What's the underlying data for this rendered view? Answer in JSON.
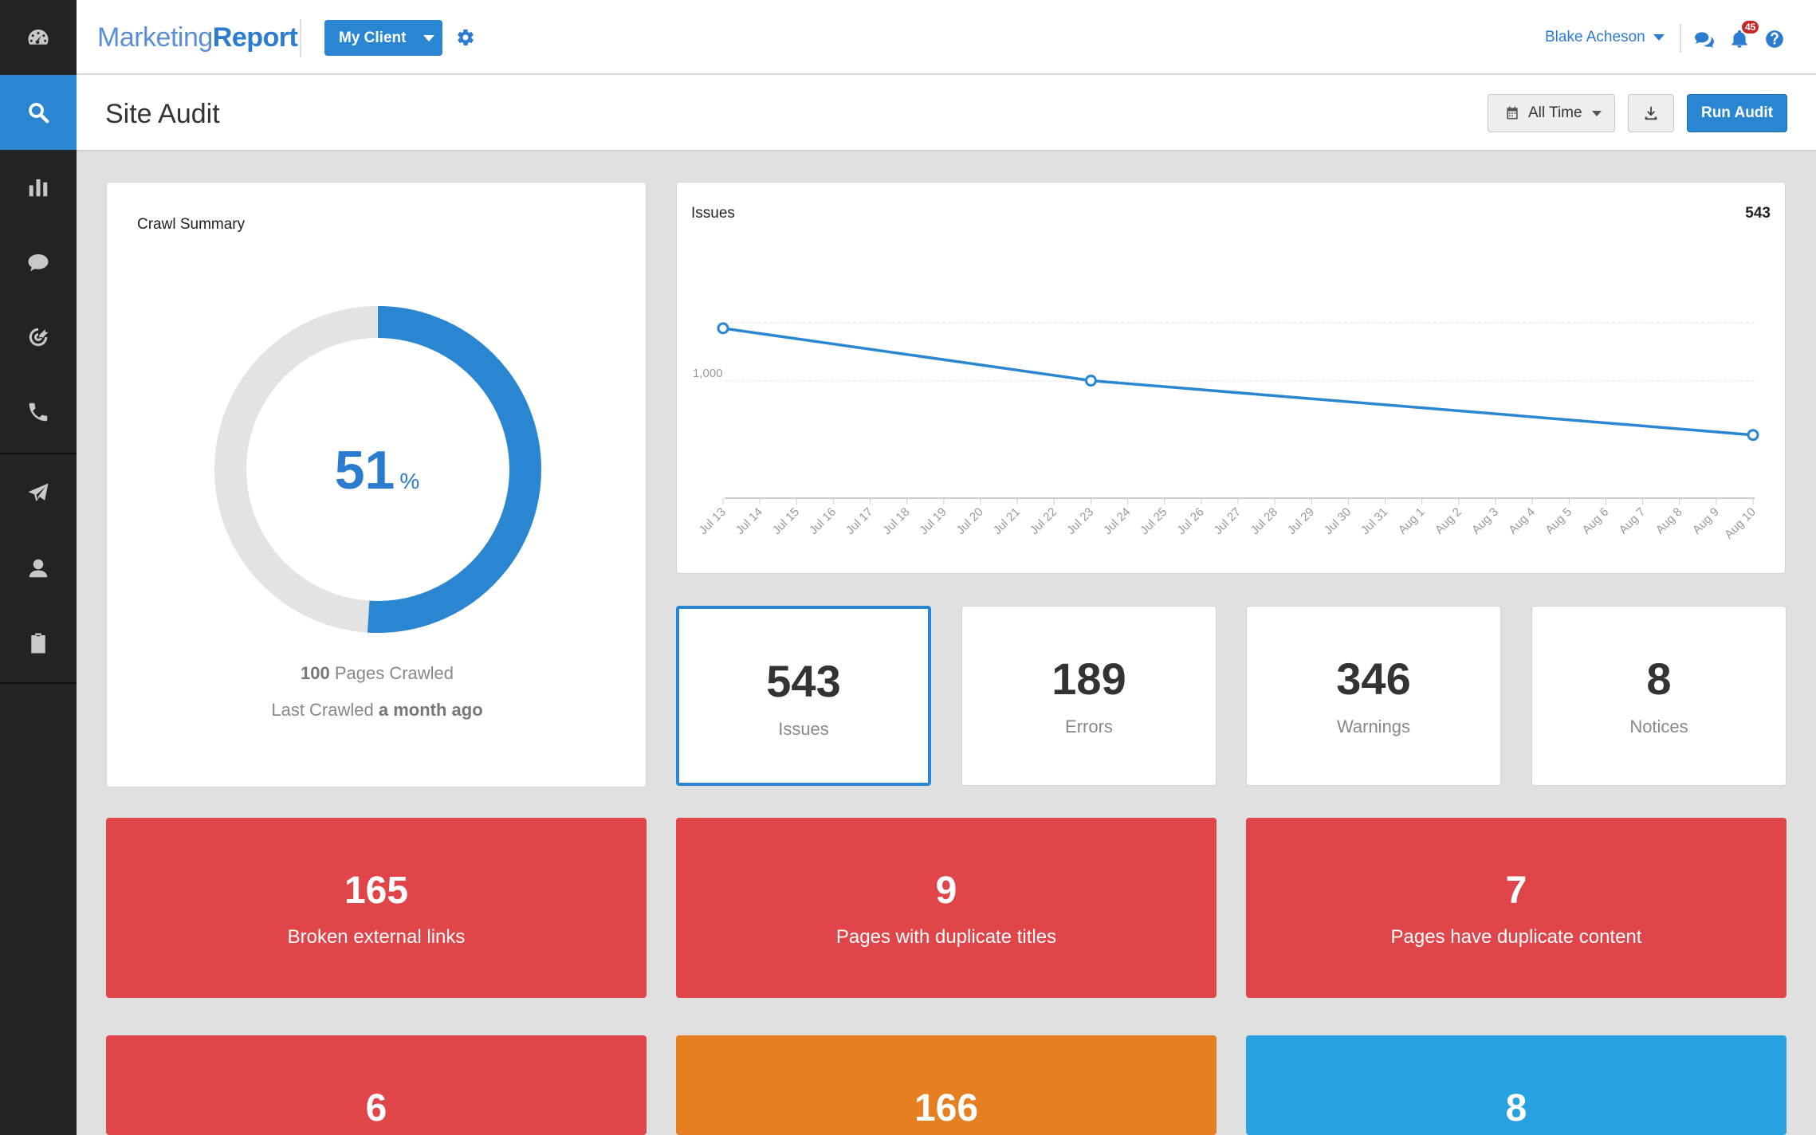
{
  "app": {
    "logo_part1": "Marketing",
    "logo_part2": "Report",
    "client_button": "My Client",
    "user_name": "Blake Acheson",
    "notification_count": "45"
  },
  "sidebar": {
    "items": [
      {
        "icon": "dashboard-icon"
      },
      {
        "icon": "search-icon",
        "active": true
      },
      {
        "icon": "bar-chart-icon"
      },
      {
        "icon": "chat-icon"
      },
      {
        "icon": "target-icon"
      },
      {
        "icon": "phone-icon"
      },
      {
        "icon": "paper-plane-icon"
      },
      {
        "icon": "user-icon"
      },
      {
        "icon": "clipboard-check-icon"
      }
    ]
  },
  "page": {
    "title": "Site Audit",
    "date_range": "All Time",
    "run_button": "Run Audit"
  },
  "crawl": {
    "title": "Crawl Summary",
    "percent": "51",
    "percent_symbol": "%",
    "percent_value": 51,
    "pages_count": "100",
    "pages_label": "Pages Crawled",
    "last_label": "Last Crawled",
    "last_value": "a month ago"
  },
  "issues_chart": {
    "title": "Issues",
    "total": "543"
  },
  "chart_data": {
    "type": "line",
    "title": "Issues",
    "x": [
      "Jul 13",
      "Jul 14",
      "Jul 15",
      "Jul 16",
      "Jul 17",
      "Jul 18",
      "Jul 19",
      "Jul 20",
      "Jul 21",
      "Jul 22",
      "Jul 23",
      "Jul 24",
      "Jul 25",
      "Jul 26",
      "Jul 27",
      "Jul 28",
      "Jul 29",
      "Jul 30",
      "Jul 31",
      "Aug 1",
      "Aug 2",
      "Aug 3",
      "Aug 4",
      "Aug 5",
      "Aug 6",
      "Aug 7",
      "Aug 8",
      "Aug 9",
      "Aug 10"
    ],
    "y_ticks": [
      "1,000"
    ],
    "series": [
      {
        "points": [
          {
            "x": "Jul 13",
            "y": 1460
          },
          {
            "x": "Jul 23",
            "y": 1010
          },
          {
            "x": "Aug 10",
            "y": 543
          }
        ]
      }
    ],
    "ylim": [
      0,
      2000
    ],
    "grid": true,
    "color": "#2b86d1"
  },
  "stats": [
    {
      "value": "543",
      "label": "Issues",
      "selected": true
    },
    {
      "value": "189",
      "label": "Errors"
    },
    {
      "value": "346",
      "label": "Warnings"
    },
    {
      "value": "8",
      "label": "Notices"
    }
  ],
  "tiles": [
    {
      "value": "165",
      "label": "Broken external links",
      "color": "#e0454a"
    },
    {
      "value": "9",
      "label": "Pages with duplicate titles",
      "color": "#e0454a"
    },
    {
      "value": "7",
      "label": "Pages have duplicate content",
      "color": "#e0454a"
    },
    {
      "value": "6",
      "label": "",
      "color": "#e0454a"
    },
    {
      "value": "166",
      "label": "",
      "color": "#e67e22"
    },
    {
      "value": "8",
      "label": "",
      "color": "#27a1e0"
    }
  ]
}
